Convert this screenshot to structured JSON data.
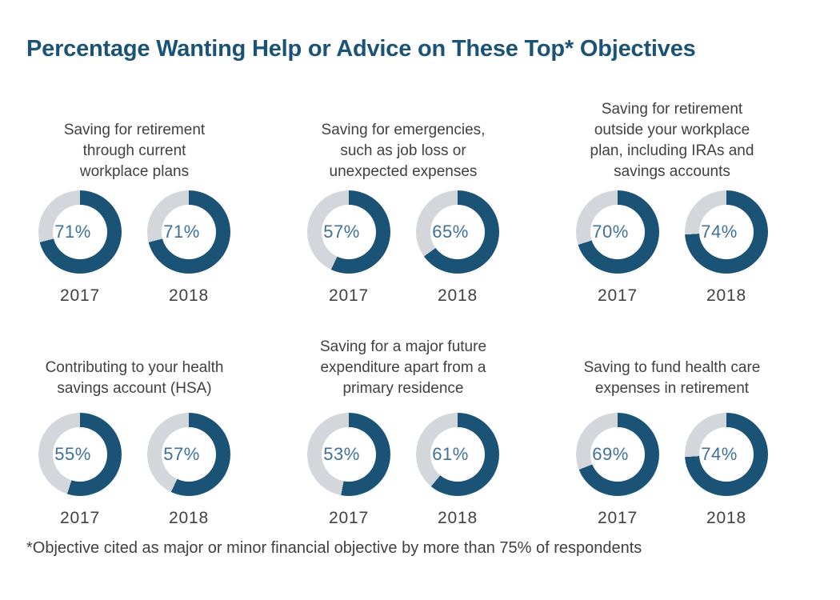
{
  "page": {
    "title": "Percentage Wanting Help or Advice on These Top* Objectives",
    "footnote": "*Objective cited as major or minor financial objective by more than 75% of respondents"
  },
  "colors": {
    "title": "#1b5377",
    "ring": "#1b5377",
    "rest": "#d3d7db",
    "value": "#3f7099",
    "text": "#414042"
  },
  "chart_data": {
    "type": "pie",
    "subtype": "donut-grid",
    "title": "Percentage Wanting Help or Advice on These Top* Objectives",
    "years": [
      "2017",
      "2018"
    ],
    "unit": "%",
    "value_range": [
      0,
      100
    ],
    "ring_start": "12 o'clock, clockwise",
    "footnote": "*Objective cited as major or minor financial objective by more than 75% of respondents",
    "groups": [
      {
        "label": "Saving for retirement\nthrough current\nworkplace plans",
        "donuts": [
          {
            "year": "2017",
            "value": 71,
            "label": "71%"
          },
          {
            "year": "2018",
            "value": 71,
            "label": "71%"
          }
        ]
      },
      {
        "label": "Saving for emergencies,\nsuch as job loss or\nunexpected expenses",
        "donuts": [
          {
            "year": "2017",
            "value": 57,
            "label": "57%"
          },
          {
            "year": "2018",
            "value": 65,
            "label": "65%"
          }
        ]
      },
      {
        "label": "Saving for retirement\noutside your workplace\nplan, including IRAs and\nsavings accounts",
        "donuts": [
          {
            "year": "2017",
            "value": 70,
            "label": "70%"
          },
          {
            "year": "2018",
            "value": 74,
            "label": "74%"
          }
        ]
      },
      {
        "label": "Contributing to your health\nsavings account (HSA)",
        "donuts": [
          {
            "year": "2017",
            "value": 55,
            "label": "55%"
          },
          {
            "year": "2018",
            "value": 57,
            "label": "57%"
          }
        ]
      },
      {
        "label": "Saving for a major future\nexpenditure apart from a\nprimary residence",
        "donuts": [
          {
            "year": "2017",
            "value": 53,
            "label": "53%"
          },
          {
            "year": "2018",
            "value": 61,
            "label": "61%"
          }
        ]
      },
      {
        "label": "Saving to fund health care\nexpenses in retirement",
        "donuts": [
          {
            "year": "2017",
            "value": 69,
            "label": "69%"
          },
          {
            "year": "2018",
            "value": 74,
            "label": "74%"
          }
        ]
      }
    ]
  }
}
